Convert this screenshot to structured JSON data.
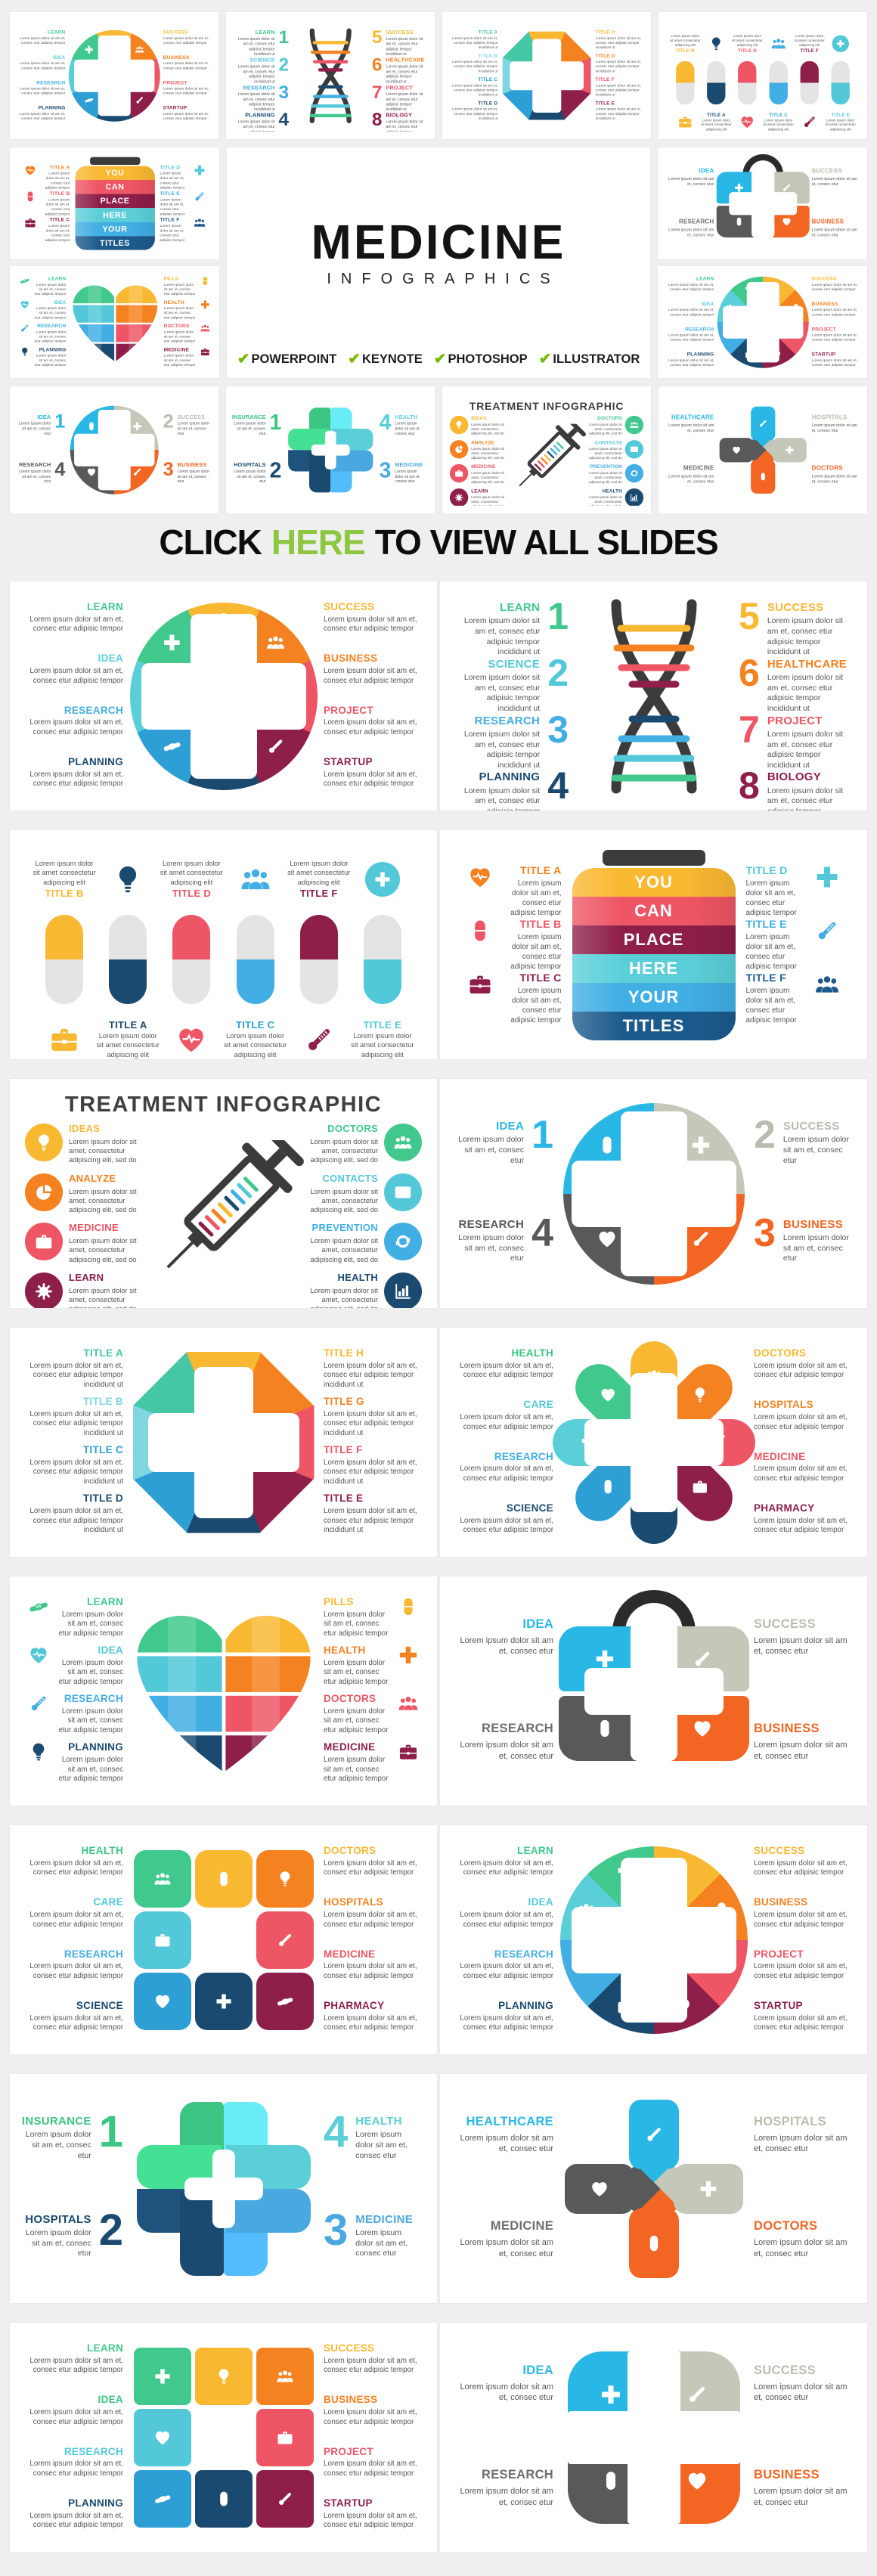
{
  "header": {
    "title": "MEDICINE",
    "subtitle": "INFOGRAPHICS",
    "features": [
      "POWERPOINT",
      "KEYNOTE",
      "PHOTOSHOP",
      "ILLUSTRATOR"
    ],
    "check_glyph": "✔",
    "check_color": "#76b900"
  },
  "banner": {
    "pre": "CLICK",
    "highlight": "HERE",
    "post": "TO VIEW ALL SLIDES",
    "highlight_color": "#8dc63f"
  },
  "palette": {
    "green": "#41c98d",
    "green2": "#3cc583",
    "tealGreen": "#45c6a4",
    "cyan": "#5bcfd8",
    "cyanLight": "#7fd6e0",
    "teal": "#52c8d9",
    "sky": "#41aee4",
    "blue": "#2e9fd4",
    "navy": "#1b4a70",
    "jarNavy": "#1d5a8c",
    "knotBlue": "#4aa8e0",
    "yellow": "#f9b831",
    "orange": "#f58220",
    "red": "#ee5565",
    "maroon": "#8e1e4a",
    "sage": "#c3c8b8",
    "sageText": "#b9bdae",
    "gray": "#58595b",
    "grayText": "#6d6e70",
    "brightCyan": "#29b8e5",
    "bOrange": "#f26522",
    "dark": "#3b3b3c",
    "ink": "#3f3f41",
    "capGray": "#e4e4e5"
  },
  "bodies": {
    "b1": "Lorem ipsum dolor sit am et, consec etur adipisic tempor",
    "b2": "Lorem ipsum dolor sit am et, consec etur adipisic tempor incididunt ut",
    "b3": "Lorem ipsum dolor sit amet consectetur adipiscing elit",
    "b4": "Lorem ipsum dolor sit amet, consectetur adipiscing elit, sed do",
    "b5": "Lorem ipsum dolor sit am et, consec etur"
  },
  "slides": {
    "circle8": {
      "type": "circle8",
      "from": -22.5,
      "iconStart": 0,
      "body": "b1",
      "left": [
        {
          "t": "LEARN",
          "c": "green"
        },
        {
          "t": "IDEA",
          "c": "cyan"
        },
        {
          "t": "RESEARCH",
          "c": "sky"
        },
        {
          "t": "PLANNING",
          "c": "navy"
        }
      ],
      "right": [
        {
          "t": "SUCCESS",
          "c": "yellow"
        },
        {
          "t": "BUSINESS",
          "c": "orange"
        },
        {
          "t": "PROJECT",
          "c": "red"
        },
        {
          "t": "STARTUP",
          "c": "maroon"
        }
      ],
      "segments": [
        {
          "c": "yellow",
          "i": "bulb"
        },
        {
          "c": "orange",
          "i": "people"
        },
        {
          "c": "red",
          "i": "case"
        },
        {
          "c": "maroon",
          "i": "thermo"
        },
        {
          "c": "navy",
          "i": "pill"
        },
        {
          "c": "blue",
          "i": "shake"
        },
        {
          "c": "cyan",
          "i": "heart"
        },
        {
          "c": "green",
          "i": "cross"
        }
      ]
    },
    "dna": {
      "type": "dna",
      "body": "b2",
      "left": [
        {
          "t": "LEARN",
          "n": "1",
          "c": "green"
        },
        {
          "t": "SCIENCE",
          "n": "2",
          "c": "teal"
        },
        {
          "t": "RESEARCH",
          "n": "3",
          "c": "sky"
        },
        {
          "t": "PLANNING",
          "n": "4",
          "c": "navy"
        }
      ],
      "right": [
        {
          "t": "SUCCESS",
          "n": "5",
          "c": "yellow"
        },
        {
          "t": "HEALTHCARE",
          "n": "6",
          "c": "orange"
        },
        {
          "t": "PROJECT",
          "n": "7",
          "c": "red"
        },
        {
          "t": "BIOLOGY",
          "n": "8",
          "c": "maroon"
        }
      ],
      "rungs": [
        "yellow",
        "orange",
        "red",
        "maroon",
        "navy",
        "sky",
        "teal",
        "green"
      ]
    },
    "pills": {
      "type": "pills",
      "body": "b3",
      "top": [
        {
          "t": "TITLE B",
          "c": "yellow"
        },
        {
          "t": "TITLE D",
          "c": "red"
        },
        {
          "t": "TITLE F",
          "c": "maroon"
        }
      ],
      "topIcons": [
        {
          "i": "bulb",
          "c": "navy"
        },
        {
          "i": "people",
          "c": "sky"
        },
        {
          "i": "cross",
          "c": "teal",
          "circle": true
        }
      ],
      "bottom": [
        {
          "t": "TITLE A",
          "c": "navy"
        },
        {
          "t": "TITLE C",
          "c": "blue"
        },
        {
          "t": "TITLE E",
          "c": "teal"
        }
      ],
      "bottomIcons": [
        {
          "i": "case",
          "c": "yellow"
        },
        {
          "i": "heart",
          "c": "red"
        },
        {
          "i": "thermo",
          "c": "maroon"
        }
      ],
      "capsules": [
        [
          "yellow",
          ""
        ],
        [
          "",
          "navy"
        ],
        [
          "red",
          ""
        ],
        [
          "",
          "sky"
        ],
        [
          "maroon",
          ""
        ],
        [
          "",
          "teal"
        ]
      ]
    },
    "jar": {
      "type": "jar",
      "body": "b1",
      "left": [
        {
          "t": "TITLE A",
          "c": "orange",
          "i": "heart"
        },
        {
          "t": "TITLE B",
          "c": "red",
          "i": "pill"
        },
        {
          "t": "TITLE C",
          "c": "maroon",
          "i": "case"
        }
      ],
      "right": [
        {
          "t": "TITLE D",
          "c": "teal",
          "i": "cross"
        },
        {
          "t": "TITLE E",
          "c": "sky",
          "i": "thermo"
        },
        {
          "t": "TITLE F",
          "c": "jarNavy",
          "i": "people"
        }
      ],
      "words": [
        {
          "t": "YOU",
          "c": "yellow"
        },
        {
          "t": "CAN",
          "c": "red"
        },
        {
          "t": "PLACE",
          "c": "maroon"
        },
        {
          "t": "HERE",
          "c": "cyan"
        },
        {
          "t": "YOUR",
          "c": "sky"
        },
        {
          "t": "TITLES",
          "c": "jarNavy"
        }
      ]
    },
    "treatment": {
      "type": "treatment",
      "title": "TREATMENT INFOGRAPHIC",
      "body": "b4",
      "left": [
        {
          "t": "IDEAS",
          "c": "yellow",
          "i": "bulb"
        },
        {
          "t": "ANALYZE",
          "c": "orange",
          "i": "pie"
        },
        {
          "t": "MEDICINE",
          "c": "red",
          "i": "case"
        },
        {
          "t": "LEARN",
          "c": "maroon",
          "i": "gear"
        }
      ],
      "right": [
        {
          "t": "DOCTORS",
          "c": "green",
          "i": "people"
        },
        {
          "t": "CONTACTS",
          "c": "teal",
          "i": "mail"
        },
        {
          "t": "PREVENTION",
          "c": "sky",
          "i": "sync"
        },
        {
          "t": "HEALTH",
          "c": "navy",
          "i": "chart"
        }
      ],
      "ticks": [
        "green",
        "teal",
        "sky",
        "navy",
        "yellow",
        "orange",
        "red",
        "maroon"
      ]
    },
    "circlecross4": {
      "type": "circlecross4",
      "body": "b5",
      "left": [
        {
          "t": "IDEA",
          "n": "1",
          "c": "brightCyan"
        },
        {
          "t": "RESEARCH",
          "n": "4",
          "c": "gray"
        }
      ],
      "right": [
        {
          "t": "SUCCESS",
          "n": "2",
          "c": "sageText"
        },
        {
          "t": "BUSINESS",
          "n": "3",
          "c": "bOrange"
        }
      ],
      "quads": [
        {
          "c": "brightCyan",
          "i": "pill"
        },
        {
          "c": "sage",
          "i": "cross"
        },
        {
          "c": "bOrange",
          "i": "thermo"
        },
        {
          "c": "gray",
          "i": "heart"
        }
      ]
    },
    "octagon8": {
      "type": "octagon8",
      "body": "b2",
      "left": [
        {
          "t": "TITLE A",
          "c": "tealGreen"
        },
        {
          "t": "TITLE B",
          "c": "cyanLight"
        },
        {
          "t": "TITLE C",
          "c": "blue"
        },
        {
          "t": "TITLE D",
          "c": "navy"
        }
      ],
      "right": [
        {
          "t": "TITLE H",
          "c": "yellow"
        },
        {
          "t": "TITLE G",
          "c": "orange"
        },
        {
          "t": "TITLE F",
          "c": "red"
        },
        {
          "t": "TITLE E",
          "c": "maroon"
        }
      ],
      "segments": [
        "yellow",
        "orange",
        "red",
        "maroon",
        "navy",
        "blue",
        "cyanLight",
        "tealGreen"
      ]
    },
    "plus8": {
      "type": "plus8",
      "body": "b1",
      "left": [
        {
          "t": "HEALTH",
          "c": "green2"
        },
        {
          "t": "CARE",
          "c": "teal"
        },
        {
          "t": "RESEARCH",
          "c": "sky"
        },
        {
          "t": "SCIENCE",
          "c": "navy"
        }
      ],
      "right": [
        {
          "t": "DOCTORS",
          "c": "yellow"
        },
        {
          "t": "HOSPITALS",
          "c": "orange"
        },
        {
          "t": "MEDICINE",
          "c": "red"
        },
        {
          "t": "PHARMACY",
          "c": "maroon"
        }
      ],
      "petals": [
        {
          "c": "yellow",
          "i": "people"
        },
        {
          "c": "orange",
          "i": "bulb"
        },
        {
          "c": "red",
          "i": "thermo"
        },
        {
          "c": "maroon",
          "i": "case"
        },
        {
          "c": "navy",
          "i": "shake"
        },
        {
          "c": "blue",
          "i": "pill"
        },
        {
          "c": "cyan",
          "i": "cross"
        },
        {
          "c": "green",
          "i": "heart"
        }
      ]
    },
    "heart8": {
      "type": "heart8",
      "body": "b1",
      "left": [
        {
          "t": "LEARN",
          "c": "green",
          "i": "shake"
        },
        {
          "t": "IDEA",
          "c": "teal",
          "i": "heart"
        },
        {
          "t": "RESEARCH",
          "c": "sky",
          "i": "thermo"
        },
        {
          "t": "PLANNING",
          "c": "navy",
          "i": "bulb"
        }
      ],
      "right": [
        {
          "t": "PILLS",
          "c": "yellow",
          "i": "pill"
        },
        {
          "t": "HEALTH",
          "c": "orange",
          "i": "cross"
        },
        {
          "t": "DOCTORS",
          "c": "red",
          "i": "people"
        },
        {
          "t": "MEDICINE",
          "c": "maroon",
          "i": "case"
        }
      ],
      "rows": [
        [
          "green",
          "yellow"
        ],
        [
          "teal",
          "orange"
        ],
        [
          "sky",
          "red"
        ],
        [
          "navy",
          "maroon"
        ]
      ]
    },
    "medbag4": {
      "type": "medbag4",
      "body": "b5",
      "left": [
        {
          "t": "IDEA",
          "c": "brightCyan"
        },
        {
          "t": "RESEARCH",
          "c": "grayText"
        }
      ],
      "right": [
        {
          "t": "SUCCESS",
          "c": "sageText"
        },
        {
          "t": "BUSINESS",
          "c": "bOrange"
        }
      ],
      "quads": [
        {
          "c": "brightCyan",
          "i": "cross"
        },
        {
          "c": "sage",
          "i": "thermo"
        },
        {
          "c": "gray",
          "i": "pill"
        },
        {
          "c": "bOrange",
          "i": "heart"
        }
      ]
    },
    "square8r": {
      "type": "square8r",
      "body": "b1",
      "radius": 16,
      "left": [
        {
          "t": "HEALTH",
          "c": "green2"
        },
        {
          "t": "CARE",
          "c": "teal"
        },
        {
          "t": "RESEARCH",
          "c": "sky"
        },
        {
          "t": "SCIENCE",
          "c": "navy"
        }
      ],
      "right": [
        {
          "t": "DOCTORS",
          "c": "yellow"
        },
        {
          "t": "HOSPITALS",
          "c": "orange"
        },
        {
          "t": "MEDICINE",
          "c": "red"
        },
        {
          "t": "PHARMACY",
          "c": "maroon"
        }
      ],
      "cells": [
        {
          "c": "green",
          "i": "people"
        },
        {
          "c": "yellow",
          "i": "pill"
        },
        {
          "c": "orange",
          "i": "bulb"
        },
        {
          "c": "teal",
          "i": "case"
        },
        {
          "c": "red",
          "i": "thermo"
        },
        {
          "c": "blue",
          "i": "heart"
        },
        {
          "c": "navy",
          "i": "cross"
        },
        {
          "c": "maroon",
          "i": "shake"
        }
      ]
    },
    "swirl8": {
      "type": "swirl8",
      "from": -45,
      "iconStart": -22.5,
      "body": "b1",
      "left": [
        {
          "t": "LEARN",
          "c": "green"
        },
        {
          "t": "IDEA",
          "c": "teal"
        },
        {
          "t": "RESEARCH",
          "c": "sky"
        },
        {
          "t": "PLANNING",
          "c": "navy"
        }
      ],
      "right": [
        {
          "t": "SUCCESS",
          "c": "yellow"
        },
        {
          "t": "BUSINESS",
          "c": "orange"
        },
        {
          "t": "PROJECT",
          "c": "red"
        },
        {
          "t": "STARTUP",
          "c": "maroon"
        }
      ],
      "segments": [
        {
          "c": "green",
          "i": "cross"
        },
        {
          "c": "yellow",
          "i": "bulb"
        },
        {
          "c": "orange",
          "i": "pill"
        },
        {
          "c": "red",
          "i": "shake"
        },
        {
          "c": "maroon",
          "i": "heart"
        },
        {
          "c": "navy",
          "i": "case"
        },
        {
          "c": "sky",
          "i": "thermo"
        },
        {
          "c": "cyan",
          "i": "people"
        }
      ]
    },
    "knot4": {
      "type": "knot4",
      "body": "b5",
      "left": [
        {
          "t": "INSURANCE",
          "n": "1",
          "c": "green2"
        },
        {
          "t": "HOSPITALS",
          "n": "2",
          "c": "navy"
        }
      ],
      "right": [
        {
          "t": "HEALTH",
          "n": "4",
          "c": "cyan"
        },
        {
          "t": "MEDICINE",
          "n": "3",
          "c": "knotBlue"
        }
      ],
      "pieces": [
        "green2",
        "cyan",
        "navy",
        "knotBlue"
      ]
    },
    "petals4": {
      "type": "petals4",
      "body": "b5",
      "left": [
        {
          "t": "HEALTHCARE",
          "c": "brightCyan"
        },
        {
          "t": "MEDICINE",
          "c": "grayText"
        }
      ],
      "right": [
        {
          "t": "HOSPITALS",
          "c": "sageText"
        },
        {
          "t": "DOCTORS",
          "c": "bOrange"
        }
      ],
      "petals": [
        {
          "c": "brightCyan",
          "i": "thermo"
        },
        {
          "c": "sage",
          "i": "cross"
        },
        {
          "c": "bOrange",
          "i": "pill"
        },
        {
          "c": "gray",
          "i": "heart"
        }
      ]
    },
    "square8b": {
      "type": "square8b",
      "body": "b1",
      "radius": 9,
      "left": [
        {
          "t": "LEARN",
          "c": "green"
        },
        {
          "t": "IDEA",
          "c": "green2"
        },
        {
          "t": "RESEARCH",
          "c": "teal"
        },
        {
          "t": "PLANNING",
          "c": "navy"
        }
      ],
      "right": [
        {
          "t": "SUCCESS",
          "c": "yellow"
        },
        {
          "t": "BUSINESS",
          "c": "orange"
        },
        {
          "t": "PROJECT",
          "c": "red"
        },
        {
          "t": "STARTUP",
          "c": "maroon"
        }
      ],
      "cells": [
        {
          "c": "green",
          "i": "cross"
        },
        {
          "c": "yellow",
          "i": "bulb"
        },
        {
          "c": "orange",
          "i": "people"
        },
        {
          "c": "teal",
          "i": "heart"
        },
        {
          "c": "red",
          "i": "case"
        },
        {
          "c": "blue",
          "i": "shake"
        },
        {
          "c": "navy",
          "i": "pill"
        },
        {
          "c": "maroon",
          "i": "thermo"
        }
      ]
    },
    "rsquare4": {
      "type": "rsquare4",
      "body": "b5",
      "left": [
        {
          "t": "IDEA",
          "c": "brightCyan"
        },
        {
          "t": "RESEARCH",
          "c": "grayText"
        }
      ],
      "right": [
        {
          "t": "SUCCESS",
          "c": "sageText"
        },
        {
          "t": "BUSINESS",
          "c": "bOrange"
        }
      ],
      "quads": [
        {
          "c": "brightCyan",
          "i": "cross"
        },
        {
          "c": "sage",
          "i": "thermo"
        },
        {
          "c": "gray",
          "i": "pill"
        },
        {
          "c": "bOrange",
          "i": "heart"
        }
      ]
    }
  },
  "layout": {
    "thumb_row_top": [
      "circle8",
      "dna",
      "octagon8",
      "pills"
    ],
    "mid_left": [
      "jar",
      "heart8"
    ],
    "mid_right": [
      "medbag4",
      "swirl8"
    ],
    "thumb_row_bottom": [
      "circlecross4",
      "knot4",
      "treatment",
      "petals4"
    ],
    "big_rows": [
      [
        "circle8",
        "dna"
      ],
      [
        "pills",
        "jar"
      ],
      [
        "treatment",
        "circlecross4"
      ],
      [
        "octagon8",
        "plus8"
      ],
      [
        "heart8",
        "medbag4"
      ],
      [
        "square8r",
        "swirl8"
      ],
      [
        "knot4",
        "petals4"
      ],
      [
        "square8b",
        "rsquare4"
      ]
    ]
  }
}
